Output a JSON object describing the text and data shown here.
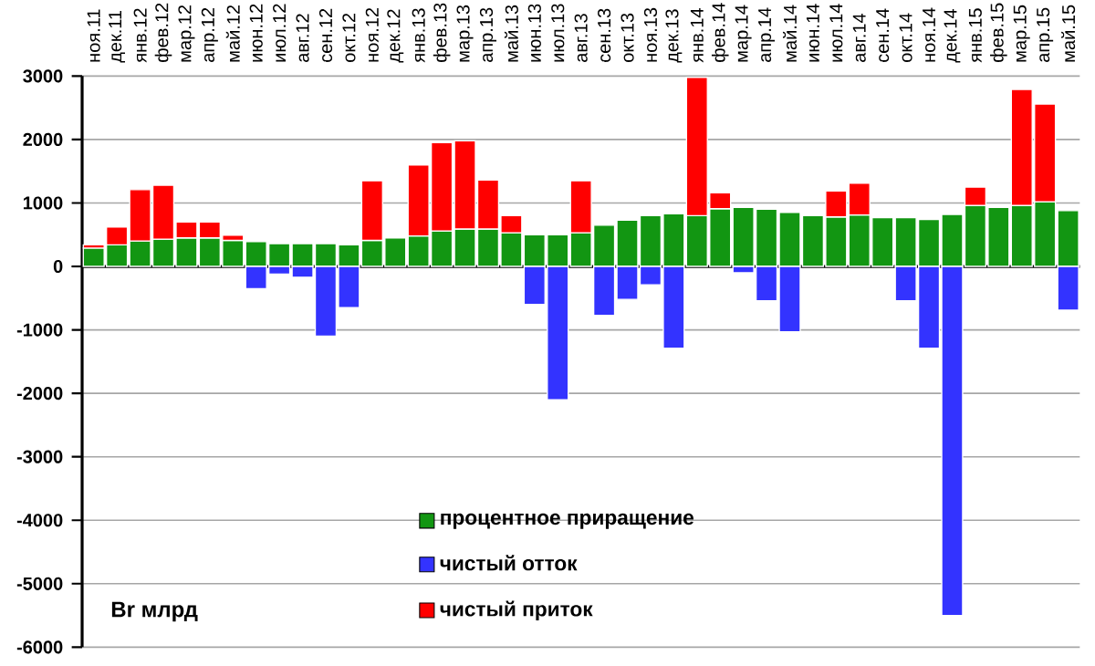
{
  "chart_data": {
    "type": "bar",
    "stacked": true,
    "ylabel": "Br млрд",
    "categories": [
      "ноя.11",
      "дек.11",
      "янв.12",
      "фев.12",
      "мар.12",
      "апр.12",
      "май.12",
      "июн.12",
      "июл.12",
      "авг.12",
      "сен.12",
      "окт.12",
      "ноя.12",
      "дек.12",
      "янв.13",
      "фев.13",
      "мар.13",
      "апр.13",
      "май.13",
      "июн.13",
      "июл.13",
      "авг.13",
      "сен.13",
      "окт.13",
      "ноя.13",
      "дек.13",
      "янв.14",
      "фев.14",
      "мар.14",
      "апр.14",
      "май.14",
      "июн.14",
      "июл.14",
      "авг.14",
      "сен.14",
      "окт.14",
      "ноя.14",
      "дек.14",
      "янв.15",
      "фев.15",
      "мар.15",
      "апр.15",
      "май.15"
    ],
    "series": [
      {
        "name": "процентное приращение",
        "color": "#129612",
        "values": [
          290,
          340,
          400,
          430,
          450,
          450,
          410,
          390,
          360,
          360,
          360,
          340,
          410,
          450,
          480,
          560,
          590,
          590,
          530,
          500,
          500,
          530,
          650,
          730,
          800,
          830,
          800,
          910,
          930,
          900,
          850,
          800,
          780,
          810,
          770,
          770,
          740,
          820,
          960,
          930,
          960,
          1020,
          880
        ]
      },
      {
        "name": "чистый отток",
        "color": "#3333ff",
        "values": [
          null,
          null,
          null,
          null,
          null,
          null,
          null,
          -350,
          -120,
          -170,
          -1100,
          -650,
          null,
          null,
          null,
          null,
          null,
          null,
          null,
          -600,
          -2100,
          null,
          -770,
          -520,
          -290,
          -1290,
          null,
          null,
          -100,
          -540,
          -1030,
          null,
          null,
          null,
          null,
          -540,
          -1290,
          -5500,
          null,
          null,
          null,
          null,
          -690
        ]
      },
      {
        "name": "чистый приток",
        "color": "#ff0000",
        "values": [
          50,
          280,
          810,
          850,
          250,
          250,
          80,
          null,
          null,
          null,
          null,
          null,
          940,
          null,
          1120,
          1390,
          1390,
          770,
          270,
          null,
          null,
          820,
          null,
          null,
          null,
          null,
          2180,
          250,
          null,
          null,
          null,
          null,
          410,
          500,
          null,
          null,
          null,
          null,
          290,
          null,
          1830,
          1540,
          null
        ]
      }
    ],
    "ylim": [
      -6000,
      3000
    ],
    "yticks": [
      -6000,
      -5000,
      -4000,
      -3000,
      -2000,
      -1000,
      0,
      1000,
      2000,
      3000
    ],
    "grid": "y",
    "legend": "bottom"
  }
}
